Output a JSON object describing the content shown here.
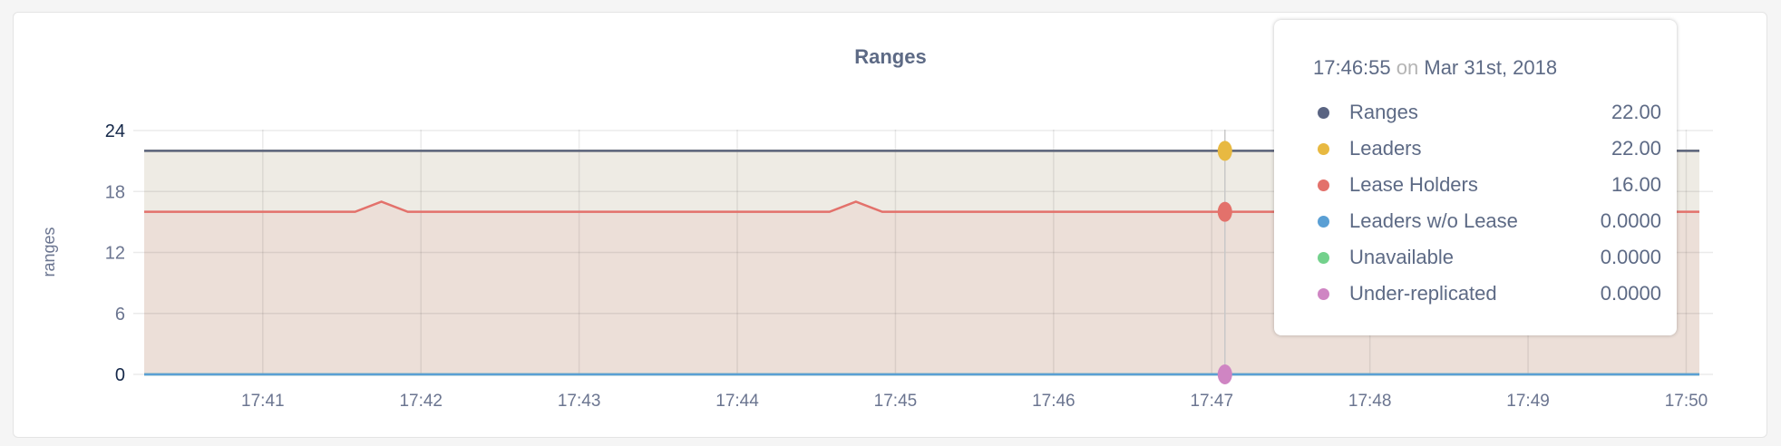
{
  "chart_data": {
    "type": "area",
    "title": "Ranges",
    "ylabel": "ranges",
    "xlabel": "",
    "ylim": [
      0,
      24
    ],
    "yticks": [
      "0",
      "6",
      "12",
      "18",
      "24"
    ],
    "xticks": [
      "17:41",
      "17:42",
      "17:43",
      "17:44",
      "17:45",
      "17:46",
      "17:47",
      "17:48",
      "17:49",
      "17:50"
    ],
    "xrange": [
      "17:40:15",
      "17:50:05"
    ],
    "grid": true,
    "legend": "tooltip",
    "series": [
      {
        "name": "Ranges",
        "color": "#5a6482",
        "points": [
          [
            "17:40:15",
            22
          ],
          [
            "17:50:05",
            22
          ]
        ]
      },
      {
        "name": "Leaders",
        "color": "#e8b941",
        "fill": "#eeebe4",
        "points": [
          [
            "17:40:15",
            22
          ],
          [
            "17:50:05",
            22
          ]
        ]
      },
      {
        "name": "Lease Holders",
        "color": "#e3716b",
        "fill": "#ecdfd8",
        "points": [
          [
            "17:40:15",
            16
          ],
          [
            "17:41:35",
            16
          ],
          [
            "17:41:45",
            17
          ],
          [
            "17:41:55",
            16
          ],
          [
            "17:44:35",
            16
          ],
          [
            "17:44:45",
            17
          ],
          [
            "17:44:55",
            16
          ],
          [
            "17:50:05",
            16
          ]
        ]
      },
      {
        "name": "Leaders w/o Lease",
        "color": "#5a9fd4",
        "points": [
          [
            "17:40:15",
            0
          ],
          [
            "17:50:05",
            0
          ]
        ]
      },
      {
        "name": "Unavailable",
        "color": "#73d18c",
        "points": [
          [
            "17:40:15",
            0
          ],
          [
            "17:50:05",
            0
          ]
        ]
      },
      {
        "name": "Under-replicated",
        "color": "#cf85c3",
        "points": [
          [
            "17:40:15",
            0
          ],
          [
            "17:50:05",
            0
          ]
        ]
      }
    ]
  },
  "tooltip": {
    "time": "17:46:55",
    "on": "on",
    "date": "Mar 31st, 2018",
    "rows": [
      {
        "label": "Ranges",
        "value": "22.00",
        "color": "#5a6482"
      },
      {
        "label": "Leaders",
        "value": "22.00",
        "color": "#e8b941"
      },
      {
        "label": "Lease Holders",
        "value": "16.00",
        "color": "#e3716b"
      },
      {
        "label": "Leaders w/o Lease",
        "value": "0.0000",
        "color": "#5a9fd4"
      },
      {
        "label": "Unavailable",
        "value": "0.0000",
        "color": "#73d18c"
      },
      {
        "label": "Under-replicated",
        "value": "0.0000",
        "color": "#cf85c3"
      }
    ]
  }
}
